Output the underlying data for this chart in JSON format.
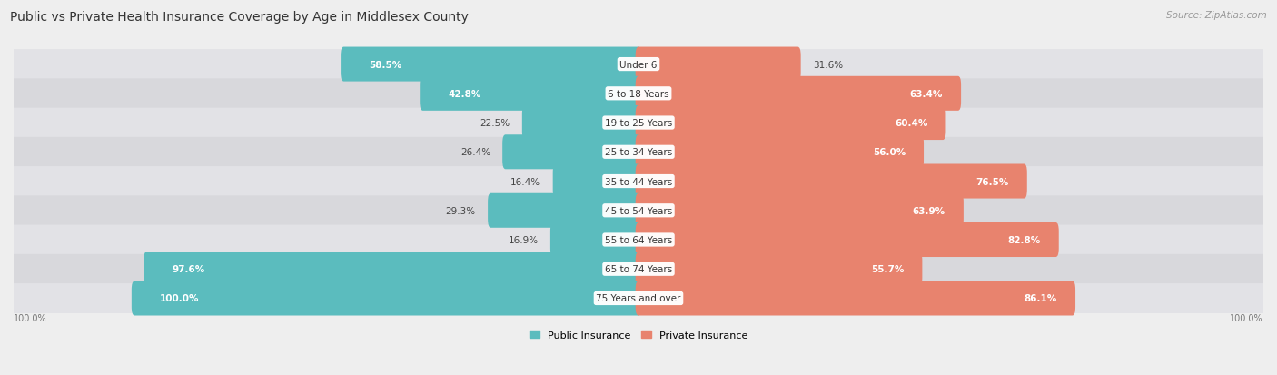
{
  "title": "Public vs Private Health Insurance Coverage by Age in Middlesex County",
  "source": "Source: ZipAtlas.com",
  "categories": [
    "Under 6",
    "6 to 18 Years",
    "19 to 25 Years",
    "25 to 34 Years",
    "35 to 44 Years",
    "45 to 54 Years",
    "55 to 64 Years",
    "65 to 74 Years",
    "75 Years and over"
  ],
  "public_values": [
    58.5,
    42.8,
    22.5,
    26.4,
    16.4,
    29.3,
    16.9,
    97.6,
    100.0
  ],
  "private_values": [
    31.6,
    63.4,
    60.4,
    56.0,
    76.5,
    63.9,
    82.8,
    55.7,
    86.1
  ],
  "public_color": "#5bbcbe",
  "private_color": "#e8836e",
  "public_label": "Public Insurance",
  "private_label": "Private Insurance",
  "background_color": "#eeeeee",
  "row_bg_color": "#e2e2e6",
  "row_bg_color_alt": "#d8d8dc",
  "max_value": 100.0,
  "title_fontsize": 10,
  "source_fontsize": 7.5,
  "value_fontsize": 7.5,
  "category_fontsize": 7.5,
  "bar_height": 0.58,
  "inside_label_threshold_pub": 40,
  "inside_label_threshold_priv": 55
}
